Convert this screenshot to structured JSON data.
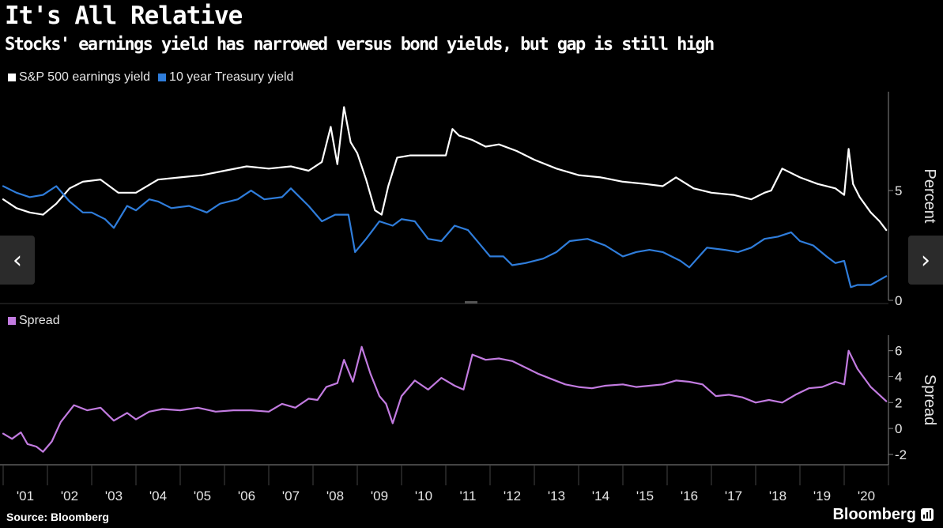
{
  "title": "It's All Relative",
  "subtitle": "Stocks' earnings yield has narrowed versus bond yields, but gap is still high",
  "source": "Source: Bloomberg",
  "brand": "Bloomberg",
  "nav": {
    "prev_icon": "chevron-left-icon",
    "next_icon": "chevron-right-icon"
  },
  "colors": {
    "earnings": "#ffffff",
    "treasury": "#2f7ddb",
    "spread": "#c27be0",
    "background": "#000000",
    "axis": "#888888"
  },
  "chart_data": [
    {
      "type": "line",
      "ylabel": "Percent",
      "ylim": [
        0,
        9.5
      ],
      "yticks": [
        0,
        5
      ],
      "legend": "top-left",
      "xlim": [
        2001.0,
        2021.0
      ],
      "series": [
        {
          "name": "S&P 500 earnings yield",
          "color": "#ffffff",
          "x": [
            2001.0,
            2001.3,
            2001.6,
            2001.9,
            2002.2,
            2002.5,
            2002.8,
            2003.2,
            2003.6,
            2004.0,
            2004.5,
            2005.0,
            2005.5,
            2006.0,
            2006.5,
            2007.0,
            2007.5,
            2007.9,
            2008.2,
            2008.4,
            2008.55,
            2008.7,
            2008.85,
            2009.0,
            2009.2,
            2009.4,
            2009.55,
            2009.7,
            2009.9,
            2010.2,
            2010.6,
            2011.0,
            2011.15,
            2011.3,
            2011.6,
            2011.9,
            2012.2,
            2012.6,
            2013.0,
            2013.5,
            2014.0,
            2014.5,
            2015.0,
            2015.5,
            2015.9,
            2016.2,
            2016.6,
            2017.0,
            2017.5,
            2017.9,
            2018.2,
            2018.35,
            2018.6,
            2019.0,
            2019.4,
            2019.8,
            2020.0,
            2020.1,
            2020.2,
            2020.35,
            2020.6,
            2020.8,
            2020.95
          ],
          "values": [
            4.6,
            4.2,
            4.0,
            3.9,
            4.4,
            5.1,
            5.4,
            5.5,
            4.9,
            4.9,
            5.5,
            5.6,
            5.7,
            5.9,
            6.1,
            6.0,
            6.1,
            5.9,
            6.3,
            7.9,
            6.2,
            8.8,
            7.2,
            6.7,
            5.5,
            4.1,
            3.9,
            5.2,
            6.5,
            6.6,
            6.6,
            6.6,
            7.8,
            7.5,
            7.3,
            7.0,
            7.1,
            6.8,
            6.4,
            6.0,
            5.7,
            5.6,
            5.4,
            5.3,
            5.2,
            5.6,
            5.1,
            4.9,
            4.8,
            4.6,
            4.9,
            5.0,
            6.0,
            5.6,
            5.3,
            5.1,
            4.8,
            6.9,
            5.3,
            4.7,
            4.0,
            3.6,
            3.2
          ]
        },
        {
          "name": "10 year Treasury yield",
          "color": "#2f7ddb",
          "x": [
            2001.0,
            2001.3,
            2001.6,
            2001.9,
            2002.2,
            2002.5,
            2002.8,
            2003.0,
            2003.3,
            2003.5,
            2003.8,
            2004.0,
            2004.3,
            2004.5,
            2004.8,
            2005.2,
            2005.6,
            2005.9,
            2006.3,
            2006.6,
            2006.9,
            2007.3,
            2007.5,
            2007.9,
            2008.2,
            2008.5,
            2008.8,
            2008.95,
            2009.2,
            2009.5,
            2009.8,
            2010.0,
            2010.3,
            2010.6,
            2010.9,
            2011.2,
            2011.5,
            2011.75,
            2012.0,
            2012.3,
            2012.5,
            2012.8,
            2013.2,
            2013.5,
            2013.8,
            2014.2,
            2014.6,
            2015.0,
            2015.3,
            2015.6,
            2015.9,
            2016.3,
            2016.5,
            2016.9,
            2017.3,
            2017.6,
            2017.9,
            2018.2,
            2018.5,
            2018.8,
            2019.0,
            2019.3,
            2019.6,
            2019.8,
            2020.0,
            2020.15,
            2020.3,
            2020.6,
            2020.95
          ],
          "values": [
            5.2,
            4.9,
            4.7,
            4.8,
            5.2,
            4.5,
            4.0,
            4.0,
            3.7,
            3.3,
            4.3,
            4.1,
            4.6,
            4.5,
            4.2,
            4.3,
            4.0,
            4.4,
            4.6,
            5.0,
            4.6,
            4.7,
            5.1,
            4.3,
            3.6,
            3.9,
            3.9,
            2.2,
            2.8,
            3.6,
            3.4,
            3.7,
            3.6,
            2.8,
            2.7,
            3.4,
            3.2,
            2.6,
            2.0,
            2.0,
            1.6,
            1.7,
            1.9,
            2.2,
            2.7,
            2.8,
            2.5,
            2.0,
            2.2,
            2.3,
            2.2,
            1.8,
            1.5,
            2.4,
            2.3,
            2.2,
            2.4,
            2.8,
            2.9,
            3.1,
            2.7,
            2.5,
            2.0,
            1.7,
            1.8,
            0.6,
            0.7,
            0.7,
            1.1
          ]
        }
      ]
    },
    {
      "type": "line",
      "ylabel": "Spread",
      "ylim": [
        -2.8,
        7.2
      ],
      "yticks": [
        -2,
        0,
        2,
        4,
        6
      ],
      "legend": "top-left",
      "xlim": [
        2001.0,
        2021.0
      ],
      "xtick_labels": [
        "'01",
        "'02",
        "'03",
        "'04",
        "'05",
        "'06",
        "'07",
        "'08",
        "'09",
        "'10",
        "'11",
        "'12",
        "'13",
        "'14",
        "'15",
        "'16",
        "'17",
        "'18",
        "'19",
        "'20"
      ],
      "series": [
        {
          "name": "Spread",
          "color": "#c27be0",
          "x": [
            2001.0,
            2001.2,
            2001.4,
            2001.55,
            2001.75,
            2001.9,
            2002.1,
            2002.3,
            2002.6,
            2002.9,
            2003.2,
            2003.5,
            2003.8,
            2004.0,
            2004.3,
            2004.6,
            2005.0,
            2005.4,
            2005.8,
            2006.2,
            2006.6,
            2007.0,
            2007.3,
            2007.6,
            2007.9,
            2008.1,
            2008.3,
            2008.55,
            2008.7,
            2008.9,
            2009.1,
            2009.3,
            2009.5,
            2009.65,
            2009.8,
            2010.0,
            2010.3,
            2010.6,
            2010.9,
            2011.2,
            2011.4,
            2011.6,
            2011.9,
            2012.2,
            2012.5,
            2012.8,
            2013.1,
            2013.4,
            2013.7,
            2014.0,
            2014.3,
            2014.6,
            2015.0,
            2015.3,
            2015.6,
            2015.9,
            2016.2,
            2016.5,
            2016.8,
            2017.1,
            2017.4,
            2017.7,
            2018.0,
            2018.3,
            2018.6,
            2018.9,
            2019.2,
            2019.5,
            2019.8,
            2020.0,
            2020.1,
            2020.3,
            2020.6,
            2020.95
          ],
          "values": [
            -0.4,
            -0.8,
            -0.3,
            -1.2,
            -1.4,
            -1.8,
            -1.0,
            0.5,
            1.8,
            1.4,
            1.6,
            0.6,
            1.2,
            0.7,
            1.3,
            1.5,
            1.4,
            1.6,
            1.3,
            1.4,
            1.4,
            1.3,
            1.9,
            1.6,
            2.3,
            2.2,
            3.2,
            3.5,
            5.3,
            3.6,
            6.3,
            4.2,
            2.5,
            1.9,
            0.4,
            2.5,
            3.7,
            3.0,
            3.9,
            3.3,
            3.0,
            5.7,
            5.3,
            5.4,
            5.2,
            4.7,
            4.2,
            3.8,
            3.4,
            3.2,
            3.1,
            3.3,
            3.4,
            3.2,
            3.3,
            3.4,
            3.7,
            3.6,
            3.4,
            2.5,
            2.6,
            2.4,
            2.0,
            2.2,
            2.0,
            2.6,
            3.1,
            3.2,
            3.6,
            3.4,
            6.0,
            4.6,
            3.2,
            2.1
          ]
        }
      ]
    }
  ]
}
